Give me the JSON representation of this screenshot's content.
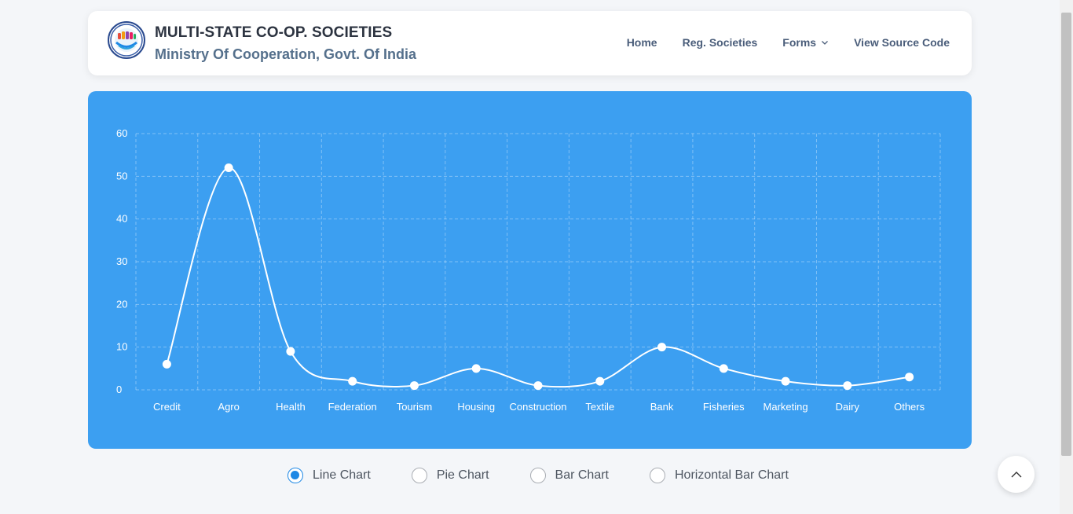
{
  "header": {
    "title": "MULTI-STATE CO-OP. SOCIETIES",
    "subtitle": "Ministry Of Cooperation, Govt. Of India",
    "logo_icon": "cooperation-emblem-icon",
    "nav": [
      {
        "label": "Home"
      },
      {
        "label": "Reg. Societies"
      },
      {
        "label": "Forms",
        "icon": "chevron-down-icon"
      },
      {
        "label": "View Source Code"
      }
    ]
  },
  "chart_data": {
    "type": "line",
    "categories": [
      "Credit",
      "Agro",
      "Health",
      "Federation",
      "Tourism",
      "Housing",
      "Construction",
      "Textile",
      "Bank",
      "Fisheries",
      "Marketing",
      "Dairy",
      "Others"
    ],
    "values": [
      6,
      52,
      9,
      2,
      1,
      5,
      1,
      2,
      10,
      5,
      2,
      1,
      3
    ],
    "y_ticks": [
      "0",
      "10",
      "20",
      "30",
      "40",
      "50",
      "60"
    ],
    "ylim": [
      0,
      60
    ],
    "grid": true,
    "line_color": "#ffffff",
    "background": "#3c9ff1"
  },
  "chart_options": {
    "selected": "Line Chart",
    "items": [
      {
        "label": "Line Chart",
        "checked": true
      },
      {
        "label": "Pie Chart",
        "checked": false
      },
      {
        "label": "Bar Chart",
        "checked": false
      },
      {
        "label": "Horizontal Bar Chart",
        "checked": false
      }
    ]
  },
  "back_to_top": {
    "icon": "chevron-up-icon"
  }
}
